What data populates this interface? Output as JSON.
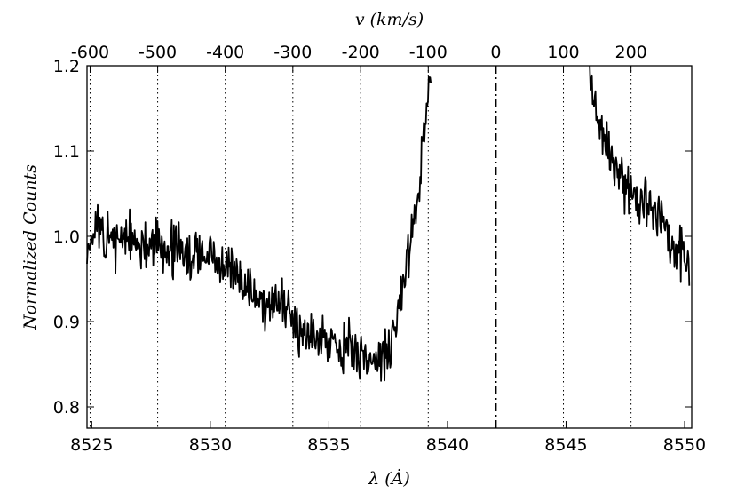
{
  "chart_data": {
    "type": "line",
    "xlabel": "λ (Ȧ)",
    "ylabel": "Normalized Counts",
    "top_xlabel": "v (km/s)",
    "xlim": [
      8524.8,
      8550.3
    ],
    "ylim": [
      0.775,
      1.2
    ],
    "grid": false,
    "legend": "none",
    "x_ticks": [
      8525,
      8530,
      8535,
      8540,
      8545,
      8550
    ],
    "x_tick_labels": [
      "8525",
      "8530",
      "8535",
      "8540",
      "8545",
      "8550"
    ],
    "y_ticks": [
      0.8,
      0.9,
      1.0,
      1.1,
      1.2
    ],
    "y_tick_labels": [
      "0.8",
      "0.9",
      "1.0",
      "1.1",
      "1.2"
    ],
    "top_ticks": [
      {
        "label": "-600",
        "wavelength": 8524.93
      },
      {
        "label": "-500",
        "wavelength": 8527.78
      },
      {
        "label": "-400",
        "wavelength": 8530.63
      },
      {
        "label": "-300",
        "wavelength": 8533.48
      },
      {
        "label": "-200",
        "wavelength": 8536.34
      },
      {
        "label": "-100",
        "wavelength": 8539.19
      },
      {
        "label": "0",
        "wavelength": 8542.04
      },
      {
        "label": "100",
        "wavelength": 8544.89
      },
      {
        "label": "200",
        "wavelength": 8547.74
      }
    ],
    "reference_line_wavelength": 8542.04,
    "series": [
      {
        "segments": [
          {
            "x": [
              8524.8,
              8525.2,
              8525.6,
              8526.0,
              8526.4,
              8526.8,
              8527.2,
              8527.6,
              8528.0,
              8528.4,
              8528.8,
              8529.2,
              8529.6,
              8530.0,
              8530.4,
              8530.8,
              8531.2,
              8531.6,
              8532.0,
              8532.4,
              8532.8,
              8533.2,
              8533.6,
              8534.0,
              8534.4,
              8534.8,
              8535.2,
              8535.6,
              8536.0,
              8536.4,
              8536.8,
              8537.2,
              8537.6,
              8538.0,
              8538.4,
              8538.8,
              8539.0,
              8539.2,
              8539.3
            ],
            "y": [
              0.99,
              1.01,
              0.99,
              1.0,
              1.0,
              0.99,
              0.98,
              1.0,
              0.98,
              0.99,
              0.98,
              0.97,
              0.98,
              0.98,
              0.96,
              0.96,
              0.95,
              0.94,
              0.93,
              0.92,
              0.92,
              0.91,
              0.9,
              0.89,
              0.89,
              0.88,
              0.88,
              0.87,
              0.87,
              0.86,
              0.85,
              0.86,
              0.87,
              0.92,
              0.99,
              1.06,
              1.12,
              1.17,
              1.2
            ]
          },
          {
            "x": [
              8546.0,
              8546.2,
              8546.4,
              8546.6,
              8547.0,
              8547.4,
              8547.8,
              8548.2,
              8548.6,
              8549.0,
              8549.4,
              8549.8,
              8550.2
            ],
            "y": [
              1.2,
              1.16,
              1.13,
              1.11,
              1.09,
              1.06,
              1.05,
              1.04,
              1.03,
              1.02,
              1.0,
              0.98,
              0.97
            ]
          }
        ]
      }
    ]
  }
}
